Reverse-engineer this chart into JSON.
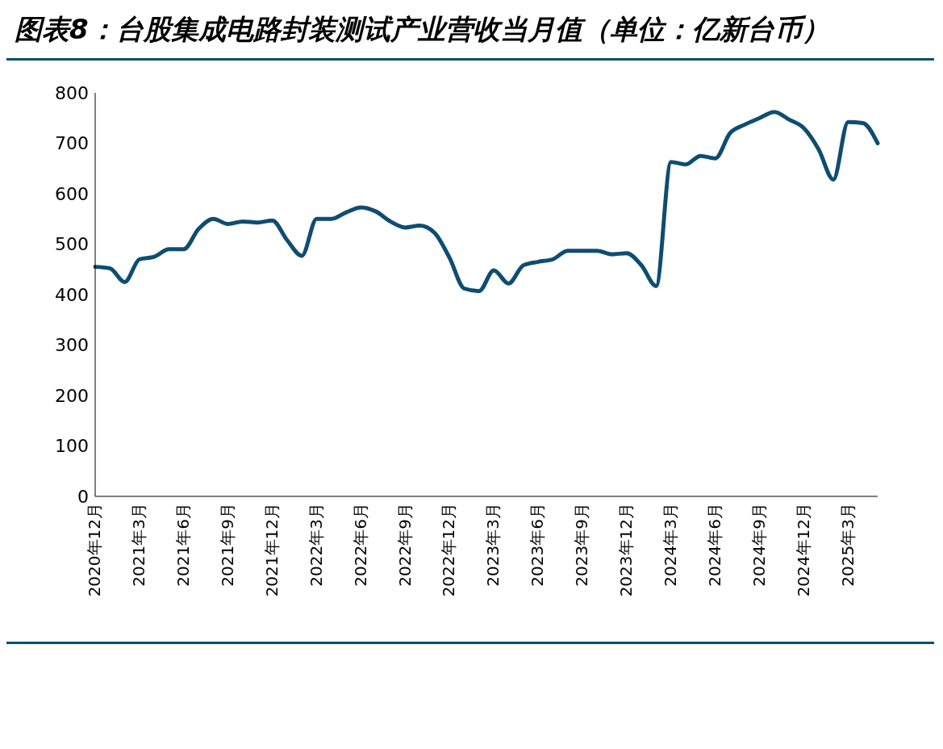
{
  "chart_data": {
    "type": "line",
    "title": "图表8：台股集成电路封装测试产业营收当月值（单位：亿新台币）",
    "categories": [
      "2020年12月",
      null,
      null,
      "2021年3月",
      null,
      null,
      "2021年6月",
      null,
      null,
      "2021年9月",
      null,
      null,
      "2021年12月",
      null,
      null,
      "2022年3月",
      null,
      null,
      "2022年6月",
      null,
      null,
      "2022年9月",
      null,
      null,
      "2022年12月",
      null,
      null,
      "2023年3月",
      null,
      null,
      "2023年6月",
      null,
      null,
      "2023年9月",
      null,
      null,
      "2023年12月",
      null,
      null,
      "2024年3月",
      null,
      null,
      "2024年6月",
      null,
      null,
      "2024年9月",
      null,
      null,
      "2024年12月",
      null,
      null,
      "2025年3月",
      null,
      null
    ],
    "series": [
      {
        "color": "#0e4d71",
        "values": [
          455,
          452,
          425,
          470,
          475,
          490,
          490,
          530,
          550,
          540,
          545,
          543,
          547,
          508,
          477,
          550,
          550,
          563,
          573,
          565,
          545,
          533,
          537,
          522,
          473,
          412,
          407,
          448,
          422,
          458,
          465,
          470,
          487,
          487,
          487,
          480,
          482,
          458,
          417,
          663,
          658,
          675,
          670,
          720,
          737,
          750,
          762,
          747,
          730,
          688,
          628,
          742,
          740,
          700
        ]
      }
    ],
    "ylim": [
      0,
      800
    ],
    "yticks": [
      0,
      100,
      200,
      300,
      400,
      500,
      600,
      700,
      800
    ],
    "grid": false,
    "legend": false,
    "marker": "none",
    "line_style": "solid"
  }
}
